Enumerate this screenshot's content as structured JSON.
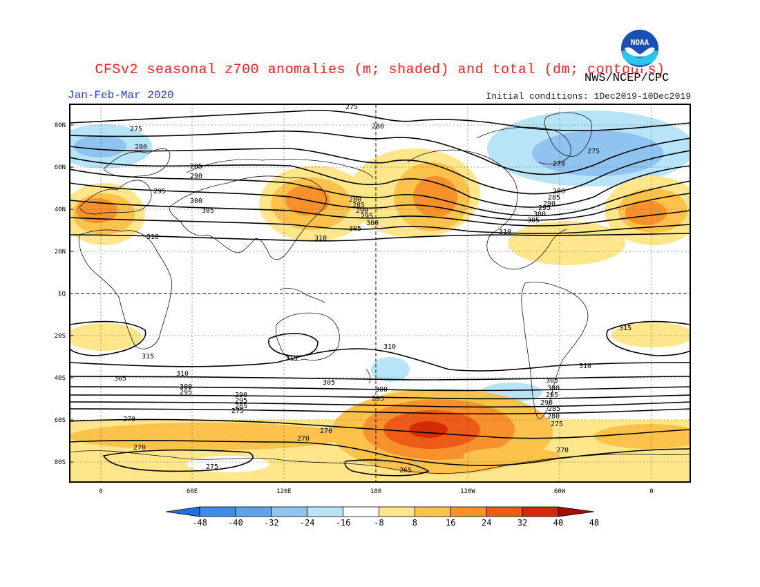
{
  "title": "CFSv2 seasonal z700 anomalies (m; shaded) and total (dm; contours)",
  "organization": "NWS/NCEP/CPC",
  "season": "Jan-Feb-Mar 2020",
  "initial_conditions": "Initial conditions: 1Dec2019-10Dec2019",
  "logo_text": "NOAA",
  "map": {
    "lat_labels": [
      "80N",
      "60N",
      "40N",
      "20N",
      "EQ",
      "20S",
      "40S",
      "60S",
      "80S"
    ],
    "lon_labels": [
      "0",
      "60E",
      "120E",
      "180",
      "120W",
      "60W",
      "0"
    ],
    "contour_labels": [
      "275",
      "280",
      "285",
      "290",
      "295",
      "300",
      "305",
      "310",
      "315",
      "270",
      "265"
    ]
  },
  "colorbar": {
    "ticks": [
      "-48",
      "-40",
      "-32",
      "-24",
      "-16",
      "-8",
      "8",
      "16",
      "24",
      "32",
      "40",
      "48"
    ],
    "colors": [
      "#1e6fe0",
      "#3c8de6",
      "#5fa3ea",
      "#8fc4f0",
      "#b8e4f8",
      "#ffffff",
      "#ffe68a",
      "#fcc24c",
      "#f7912c",
      "#ee5a18",
      "#d42a08",
      "#a00e06"
    ]
  }
}
